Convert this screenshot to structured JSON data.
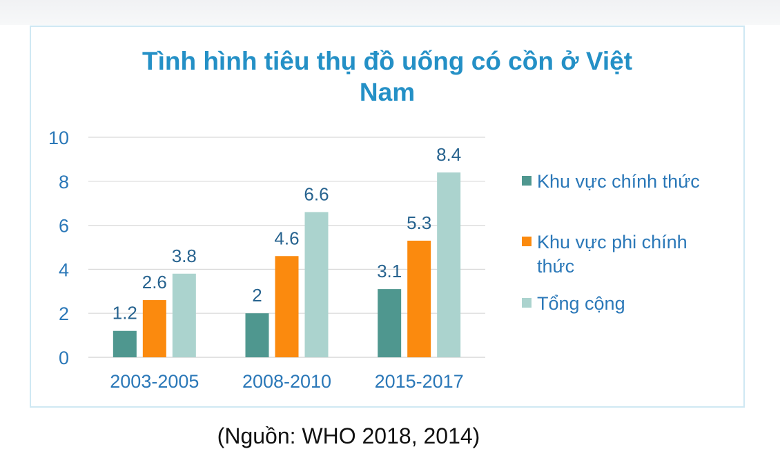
{
  "chart_data": {
    "type": "bar",
    "title_lines": [
      "Tình hình tiêu thụ đồ uống có cồn ở Việt",
      "Nam"
    ],
    "categories": [
      "2003-2005",
      "2008-2010",
      "2015-2017"
    ],
    "series": [
      {
        "name": "Khu vực chính thức",
        "legend_lines": [
          "Khu vực chính thức"
        ],
        "values": [
          1.2,
          2,
          3.1
        ],
        "color": "#4f978f"
      },
      {
        "name": "Khu vực phi chính thức",
        "legend_lines": [
          "Khu vực phi chính",
          "thức"
        ],
        "values": [
          2.6,
          4.6,
          5.3
        ],
        "color": "#fb8a0e"
      },
      {
        "name": "Tổng cộng",
        "legend_lines": [
          "Tổng cộng"
        ],
        "values": [
          3.8,
          6.6,
          8.4
        ],
        "color": "#abd3ce"
      }
    ],
    "ylim": [
      0,
      10
    ],
    "yticks": [
      0,
      2,
      4,
      6,
      8,
      10
    ],
    "grid": true,
    "legend_position": "right"
  },
  "source_note": "(Nguồn: WHO 2018, 2014)",
  "colors": {
    "title": "#2490c6",
    "axis_text": "#2b78b8",
    "grid": "#d9d9d9",
    "frame_border": "#cfe8f3"
  }
}
